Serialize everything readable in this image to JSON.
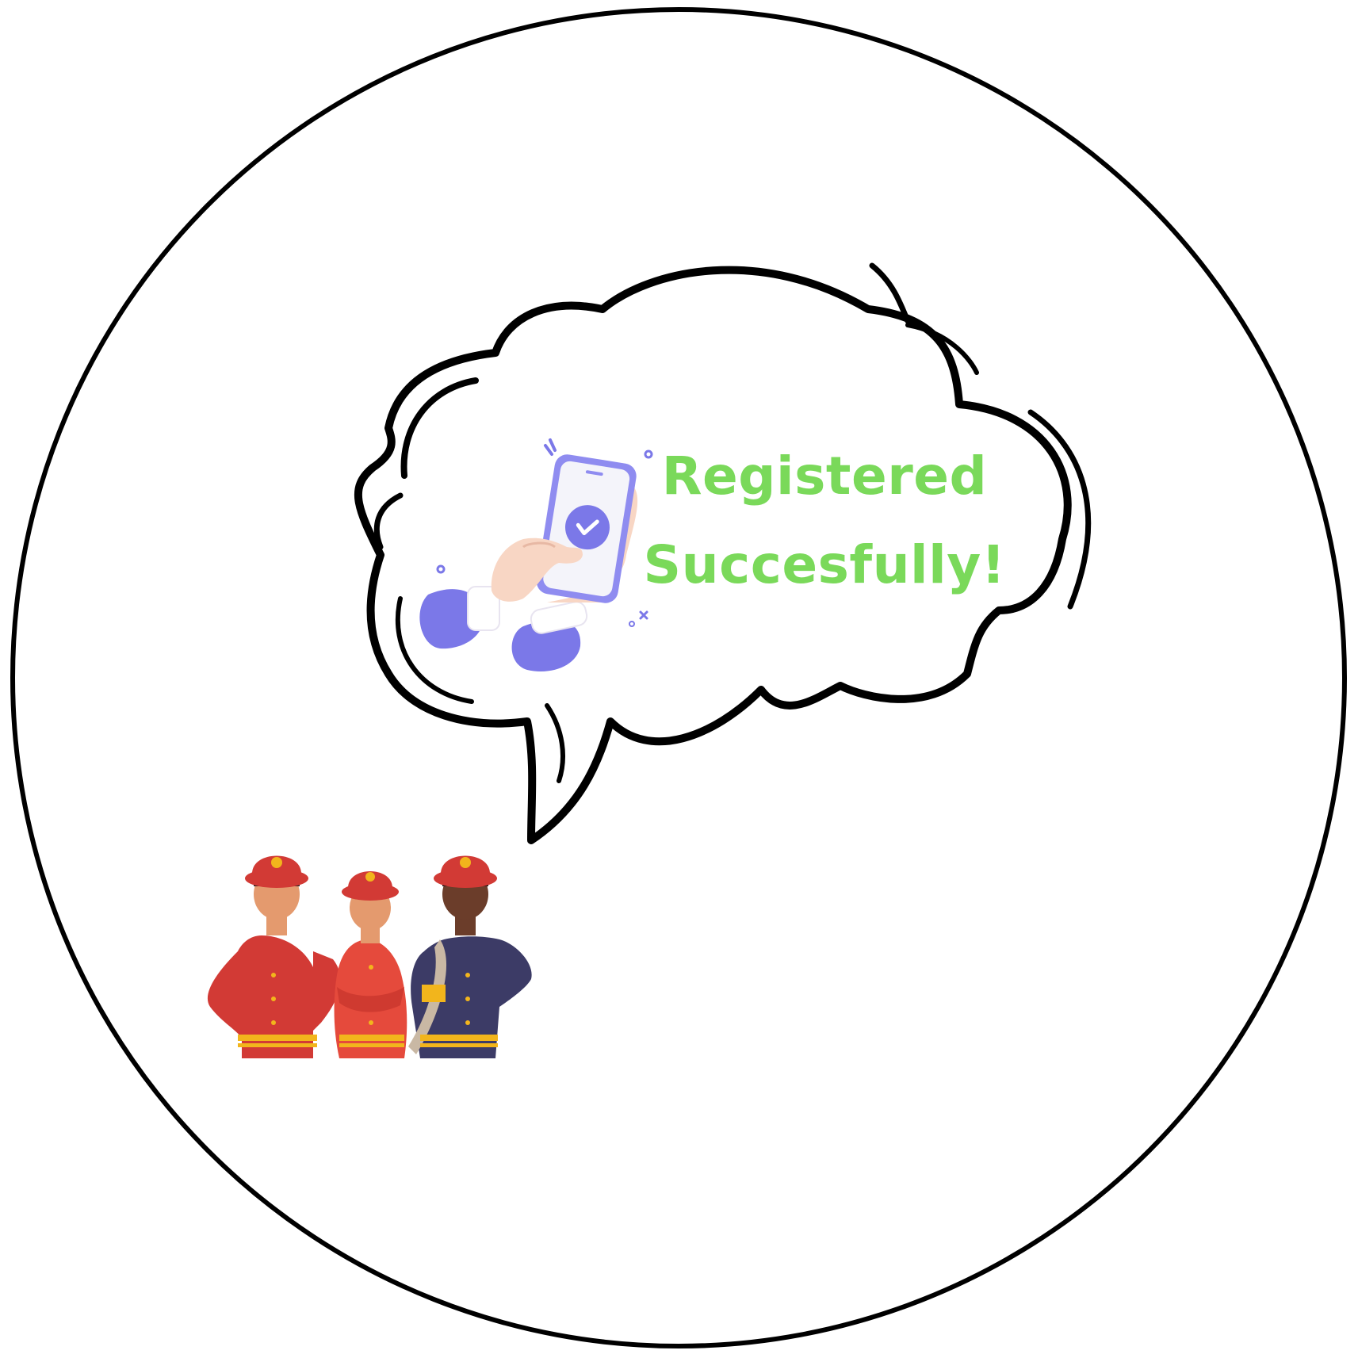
{
  "message": {
    "line1": "Registered",
    "line2": "Succesfully!"
  },
  "colors": {
    "message_text": "#7ad95a",
    "outline": "#000000",
    "background": "#ffffff",
    "accent_purple": "#7b78e8",
    "helmet_red": "#d23a35",
    "jacket_navy": "#3c3b66",
    "badge_gold": "#f2b51c"
  },
  "icons": {
    "phone": "phone-check-icon",
    "figures": "firefighters-illustration"
  }
}
